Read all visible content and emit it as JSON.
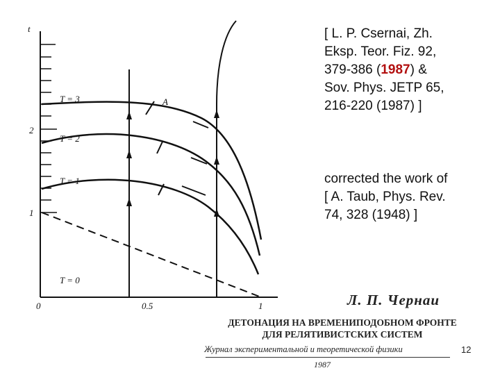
{
  "figure": {
    "axis_labels": {
      "y": "t",
      "origin": "0"
    },
    "x_ticks": [
      "0.5",
      "1"
    ],
    "y_ticks": [
      "1",
      "2"
    ],
    "curves": [
      {
        "label": "T = 3"
      },
      {
        "label": "T = 2"
      },
      {
        "label": "T = 1"
      },
      {
        "label": "T = 0"
      }
    ],
    "point_label": "A"
  },
  "reference": {
    "line1": "[ L. P. Csernai, Zh.",
    "line2": "Eksp. Teor. Fiz. 92,",
    "line3_prefix": "379-386 (",
    "line3_year": "1987",
    "line3_suffix": ")  &",
    "line4": "Sov. Phys. JETP 65,",
    "line5": "216-220 (1987) ]"
  },
  "correction": {
    "line1": "corrected the work of",
    "line2_prefix": "[ ",
    "line2_author": "A. Taub",
    "line2_suffix": ", Phys. Rev.",
    "line3_prefix": "74, 328 (",
    "line3_year": "1948",
    "line3_suffix": ") ]"
  },
  "scan": {
    "author": "Л. П. Чернаи",
    "title_line1": "ДЕТОНАЦИЯ НА ВРЕМЕНИПОДОБНОМ ФРОНТЕ",
    "title_line2": "ДЛЯ РЕЛЯТИВИСТСКИХ СИСТЕМ",
    "journal": "Журнал экспериментальной и теоретической физики",
    "year": "1987"
  },
  "page_number": "12"
}
